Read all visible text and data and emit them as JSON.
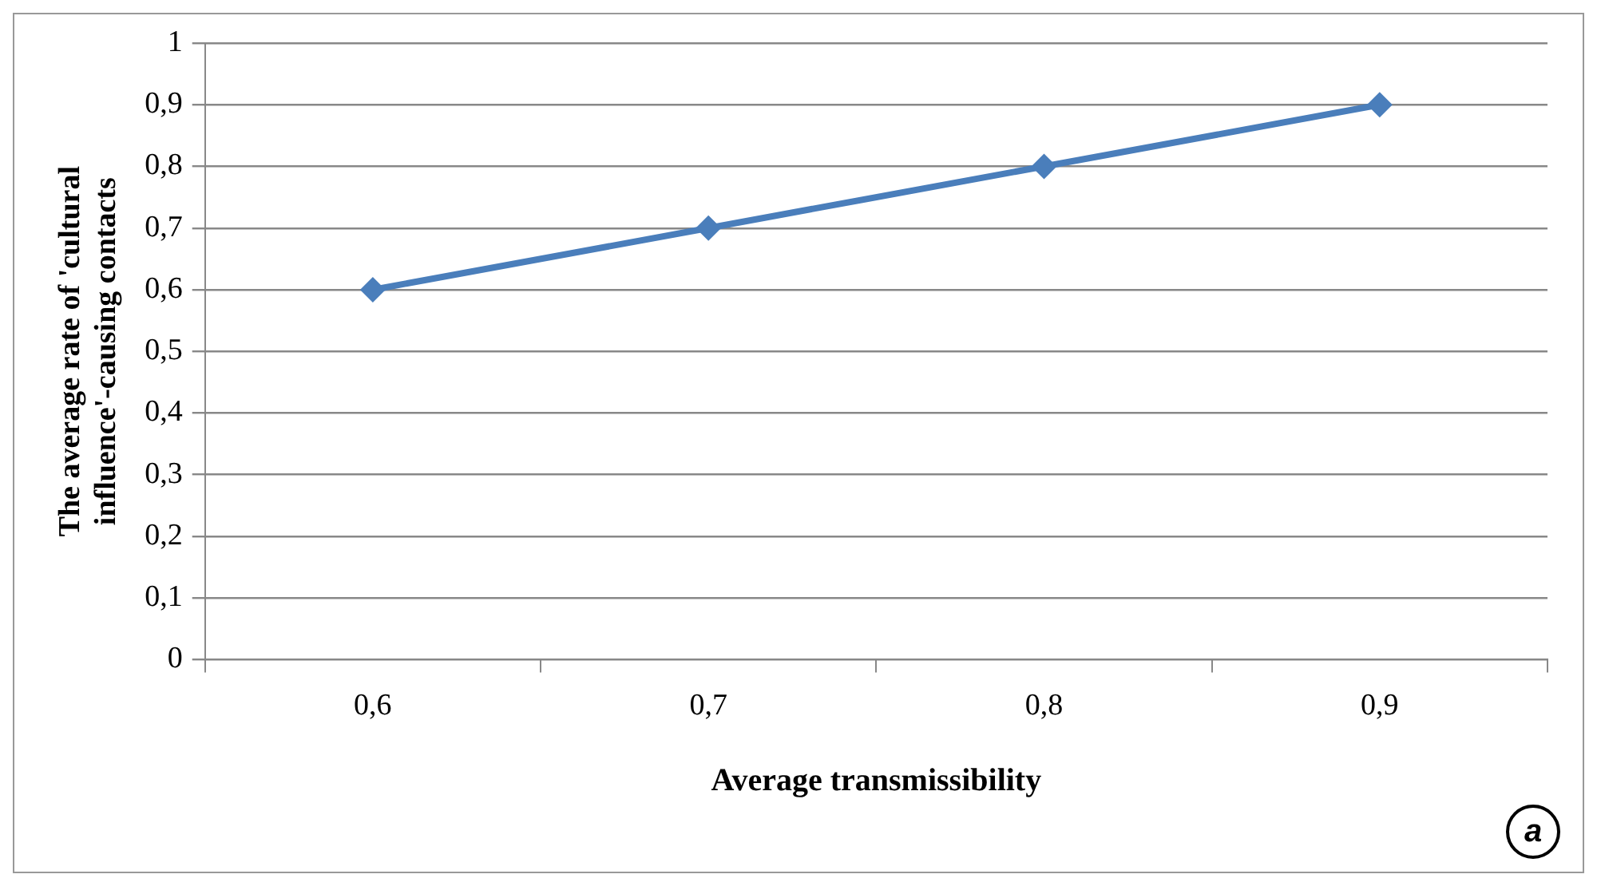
{
  "chart_data": {
    "type": "line",
    "xlabel": "Average transmissibility",
    "ylabel": "The average rate of 'cultural influence'-causing contacts",
    "categories": [
      "0,6",
      "0,7",
      "0,8",
      "0,9"
    ],
    "series": [
      {
        "color": "#4a7ebb",
        "values": [
          0.6,
          0.7,
          0.8,
          0.9
        ]
      }
    ],
    "ylim": [
      0,
      1
    ],
    "yticks": [
      0,
      {
        "value": 0.1,
        "label": "0,1"
      },
      {
        "value": 0.2,
        "label": "0,2"
      },
      {
        "value": 0.3,
        "label": "0,3"
      },
      {
        "value": 0.4,
        "label": "0,4"
      },
      {
        "value": 0.5,
        "label": "0,5"
      },
      {
        "value": 0.6,
        "label": "0,6"
      },
      {
        "value": 0.7,
        "label": "0,7"
      },
      {
        "value": 0.8,
        "label": "0,8"
      },
      {
        "value": 0.9,
        "label": "0,9"
      },
      1
    ],
    "grid": "y",
    "legend": false,
    "marker": "diamond",
    "line_style": "solid",
    "annotations": [
      "a"
    ]
  }
}
